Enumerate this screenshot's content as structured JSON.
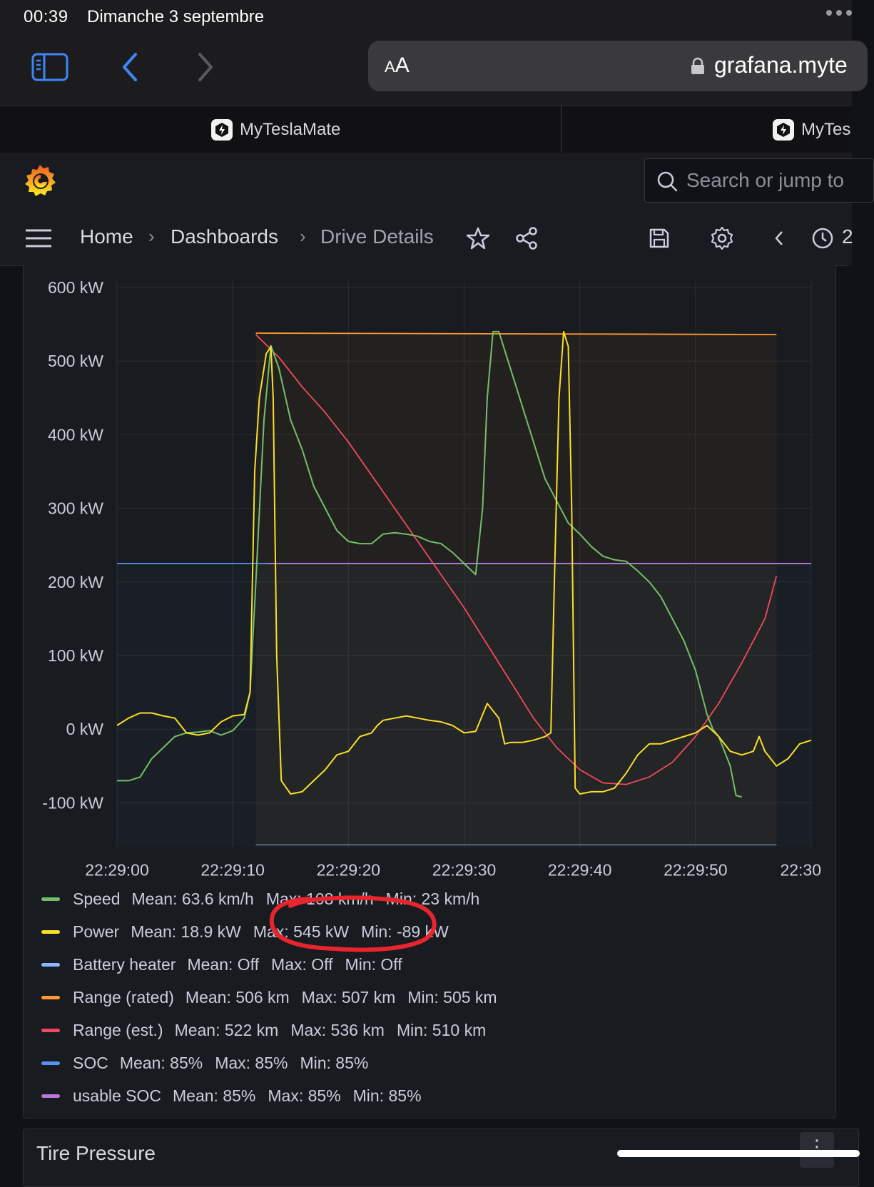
{
  "status": {
    "time": "00:39",
    "date": "Dimanche 3 septembre"
  },
  "browser": {
    "aa_small": "A",
    "aa_large": "A",
    "url_host": "grafana.myte"
  },
  "tabs": [
    {
      "label": "MyTeslaMate"
    },
    {
      "label": "MyTes"
    }
  ],
  "grafana": {
    "search_placeholder": "Search or jump to",
    "breadcrumb": {
      "home": "Home",
      "dashboards": "Dashboards",
      "current": "Drive Details"
    },
    "time_picker_partial": "2"
  },
  "icons": [
    "sidebar-icon",
    "back-icon",
    "forward-icon",
    "lock-icon",
    "teslamate-icon",
    "grafana-logo-icon",
    "search-icon",
    "menu-icon",
    "star-icon",
    "share-icon",
    "save-icon",
    "gear-icon",
    "chevron-left-icon",
    "clock-icon"
  ],
  "colors": {
    "speed": "#73bf69",
    "power": "#fade2a",
    "battery_heater": "#8ab8ff",
    "range_rated": "#ff9830",
    "range_est": "#f2495c",
    "soc": "#5794f2",
    "usable_soc": "#b877d9",
    "annotation": "#e8242e"
  },
  "chart_data": {
    "type": "line",
    "yunit": "kW",
    "ylim": [
      -160,
      600
    ],
    "yticks": [
      "600 kW",
      "500 kW",
      "400 kW",
      "300 kW",
      "200 kW",
      "100 kW",
      "0 kW",
      "-100 kW"
    ],
    "xticks": [
      "22:29:00",
      "22:29:10",
      "22:29:20",
      "22:29:30",
      "22:29:40",
      "22:29:50",
      "22:30"
    ],
    "xlim": [
      0,
      60
    ],
    "series": [
      {
        "name": "Speed",
        "key": "speed",
        "points": [
          [
            0,
            -70
          ],
          [
            1,
            -70
          ],
          [
            2,
            -65
          ],
          [
            3,
            -40
          ],
          [
            4,
            -25
          ],
          [
            5,
            -10
          ],
          [
            6,
            -5
          ],
          [
            7,
            -4
          ],
          [
            8,
            -2
          ],
          [
            9,
            -8
          ],
          [
            10,
            -2
          ],
          [
            11,
            15
          ],
          [
            11.5,
            50
          ],
          [
            12,
            200
          ],
          [
            12.7,
            420
          ],
          [
            13.3,
            521
          ],
          [
            14,
            490
          ],
          [
            15,
            420
          ],
          [
            16,
            380
          ],
          [
            17,
            330
          ],
          [
            18,
            300
          ],
          [
            19,
            270
          ],
          [
            20,
            255
          ],
          [
            21,
            252
          ],
          [
            22,
            252
          ],
          [
            23,
            265
          ],
          [
            24,
            267
          ],
          [
            25,
            265
          ],
          [
            26,
            262
          ],
          [
            27,
            255
          ],
          [
            28,
            252
          ],
          [
            29,
            240
          ],
          [
            30,
            225
          ],
          [
            31,
            210
          ],
          [
            31.6,
            300
          ],
          [
            32,
            450
          ],
          [
            32.5,
            540
          ],
          [
            33,
            540
          ],
          [
            34,
            490
          ],
          [
            35,
            440
          ],
          [
            36,
            390
          ],
          [
            37,
            340
          ],
          [
            38,
            310
          ],
          [
            39,
            280
          ],
          [
            40,
            265
          ],
          [
            41,
            248
          ],
          [
            42,
            235
          ],
          [
            43,
            230
          ],
          [
            44,
            228
          ],
          [
            45,
            215
          ],
          [
            46,
            200
          ],
          [
            47,
            180
          ],
          [
            48,
            150
          ],
          [
            49,
            120
          ],
          [
            50,
            80
          ],
          [
            51,
            20
          ],
          [
            51.5,
            0
          ],
          [
            52,
            -10
          ],
          [
            53,
            -50
          ],
          [
            53.5,
            -90
          ],
          [
            54,
            -92
          ]
        ]
      },
      {
        "name": "Power",
        "key": "power",
        "points": [
          [
            0,
            5
          ],
          [
            1,
            15
          ],
          [
            2,
            22
          ],
          [
            3,
            22
          ],
          [
            4,
            18
          ],
          [
            5,
            15
          ],
          [
            6,
            -5
          ],
          [
            7,
            -8
          ],
          [
            8,
            -5
          ],
          [
            9,
            10
          ],
          [
            10,
            18
          ],
          [
            11,
            20
          ],
          [
            11.5,
            50
          ],
          [
            11.9,
            350
          ],
          [
            12.3,
            450
          ],
          [
            12.9,
            510
          ],
          [
            13.3,
            520
          ],
          [
            13.5,
            450
          ],
          [
            13.8,
            100
          ],
          [
            14.2,
            -70
          ],
          [
            15,
            -88
          ],
          [
            16,
            -85
          ],
          [
            17,
            -70
          ],
          [
            18,
            -55
          ],
          [
            19,
            -35
          ],
          [
            20,
            -30
          ],
          [
            21,
            -10
          ],
          [
            22,
            -5
          ],
          [
            22.5,
            5
          ],
          [
            23,
            12
          ],
          [
            24,
            15
          ],
          [
            25,
            18
          ],
          [
            26,
            15
          ],
          [
            27,
            12
          ],
          [
            28,
            10
          ],
          [
            29,
            5
          ],
          [
            30,
            -5
          ],
          [
            31,
            -3
          ],
          [
            32,
            35
          ],
          [
            33,
            15
          ],
          [
            33.5,
            -20
          ],
          [
            34,
            -18
          ],
          [
            35,
            -18
          ],
          [
            36,
            -15
          ],
          [
            37,
            -10
          ],
          [
            37.5,
            -5
          ],
          [
            37.8,
            200
          ],
          [
            38.2,
            450
          ],
          [
            38.6,
            540
          ],
          [
            39,
            520
          ],
          [
            39.3,
            300
          ],
          [
            39.6,
            -80
          ],
          [
            40,
            -88
          ],
          [
            41,
            -85
          ],
          [
            42,
            -85
          ],
          [
            43,
            -80
          ],
          [
            44,
            -60
          ],
          [
            45,
            -35
          ],
          [
            46,
            -20
          ],
          [
            47,
            -20
          ],
          [
            48,
            -15
          ],
          [
            49,
            -10
          ],
          [
            50,
            -5
          ],
          [
            51,
            5
          ],
          [
            52,
            -10
          ],
          [
            53,
            -30
          ],
          [
            54,
            -35
          ],
          [
            55,
            -30
          ],
          [
            55.5,
            -10
          ],
          [
            56,
            -30
          ],
          [
            57,
            -50
          ],
          [
            58,
            -40
          ],
          [
            59,
            -20
          ],
          [
            60,
            -15
          ]
        ]
      },
      {
        "name": "Battery heater",
        "key": "battery_heater",
        "points": []
      },
      {
        "name": "Range (rated)",
        "key": "range_rated",
        "points": [
          [
            12,
            538
          ],
          [
            57,
            536
          ]
        ]
      },
      {
        "name": "Range (est.)",
        "key": "range_est",
        "points": [
          [
            12,
            536
          ],
          [
            14,
            505
          ],
          [
            16,
            465
          ],
          [
            18,
            430
          ],
          [
            20,
            390
          ],
          [
            22,
            345
          ],
          [
            24,
            300
          ],
          [
            26,
            255
          ],
          [
            28,
            210
          ],
          [
            30,
            165
          ],
          [
            32,
            115
          ],
          [
            34,
            65
          ],
          [
            36,
            15
          ],
          [
            38,
            -25
          ],
          [
            40,
            -55
          ],
          [
            42,
            -73
          ],
          [
            44,
            -75
          ],
          [
            46,
            -65
          ],
          [
            48,
            -45
          ],
          [
            50,
            -10
          ],
          [
            52,
            35
          ],
          [
            54,
            90
          ],
          [
            56,
            150
          ],
          [
            57,
            208
          ]
        ]
      },
      {
        "name": "SOC",
        "key": "soc",
        "points": [
          [
            0,
            225
          ],
          [
            60,
            225
          ]
        ]
      },
      {
        "name": "usable SOC",
        "key": "usable_soc",
        "points": [
          [
            13,
            225
          ],
          [
            60,
            225
          ]
        ]
      }
    ],
    "legend": [
      {
        "name": "Speed",
        "key": "speed",
        "mean": "Mean: 63.6 km/h",
        "max": "Max: 108 km/h",
        "min": "Min: 23 km/h"
      },
      {
        "name": "Power",
        "key": "power",
        "mean": "Mean: 18.9 kW",
        "max": "Max: 545 kW",
        "min": "Min: -89 kW"
      },
      {
        "name": "Battery heater",
        "key": "battery_heater",
        "mean": "Mean: Off",
        "max": "Max: Off",
        "min": "Min: Off"
      },
      {
        "name": "Range (rated)",
        "key": "range_rated",
        "mean": "Mean: 506 km",
        "max": "Max: 507 km",
        "min": "Min: 505 km"
      },
      {
        "name": "Range (est.)",
        "key": "range_est",
        "mean": "Mean: 522 km",
        "max": "Max: 536 km",
        "min": "Min: 510 km"
      },
      {
        "name": "SOC",
        "key": "soc",
        "mean": "Mean: 85%",
        "max": "Max: 85%",
        "min": "Min: 85%"
      },
      {
        "name": "usable SOC",
        "key": "usable_soc",
        "mean": "Mean: 85%",
        "max": "Max: 85%",
        "min": "Min: 85%"
      }
    ],
    "legend_placement": "bottom"
  },
  "next_panel": {
    "title": "Tire Pressure",
    "menu_glyph": "⋮"
  }
}
